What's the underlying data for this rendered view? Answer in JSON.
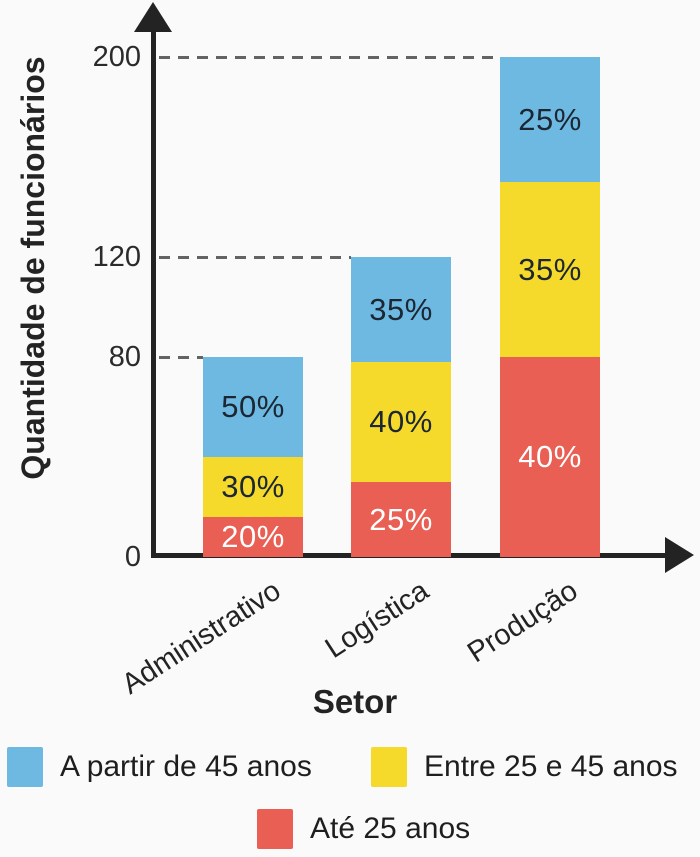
{
  "chart_data": {
    "type": "bar",
    "subtype": "stacked-percent",
    "title": "",
    "xlabel": "Setor",
    "ylabel": "Quantidade de funcionários",
    "categories": [
      "Administrativo",
      "Logística",
      "Produção"
    ],
    "totals": [
      80,
      120,
      200
    ],
    "yticks": [
      0,
      80,
      120,
      200
    ],
    "ylim": [
      0,
      215
    ],
    "grid": "dashed horizontal segments from y-axis to each bar at its total height",
    "legend_position": "bottom",
    "series": [
      {
        "name": "Até 25 anos",
        "color": "#e95f54",
        "label_color": "#ffffff",
        "percents": [
          20,
          25,
          40
        ],
        "labels": [
          "20%",
          "25%",
          "40%"
        ],
        "values": [
          16,
          30,
          80
        ]
      },
      {
        "name": "Entre 25 e 45 anos",
        "color": "#f6da2b",
        "label_color": "#1d2733",
        "percents": [
          30,
          40,
          35
        ],
        "labels": [
          "30%",
          "40%",
          "35%"
        ],
        "values": [
          24,
          48,
          70
        ]
      },
      {
        "name": "A partir de 45 anos",
        "color": "#6db9e2",
        "label_color": "#1d2733",
        "percents": [
          50,
          35,
          25
        ],
        "labels": [
          "50%",
          "35%",
          "25%"
        ],
        "values": [
          40,
          42,
          50
        ]
      }
    ]
  },
  "legend": {
    "items": [
      {
        "label": "A partir de 45 anos",
        "color": "#6db9e2"
      },
      {
        "label": "Entre 25 e 45 anos",
        "color": "#f6da2b"
      },
      {
        "label": "Até 25 anos",
        "color": "#e95f54"
      }
    ]
  },
  "colors": {
    "background": "#fafafa",
    "axis": "#232323",
    "gridline": "#636363",
    "tick_text": "#2b2b2b"
  }
}
